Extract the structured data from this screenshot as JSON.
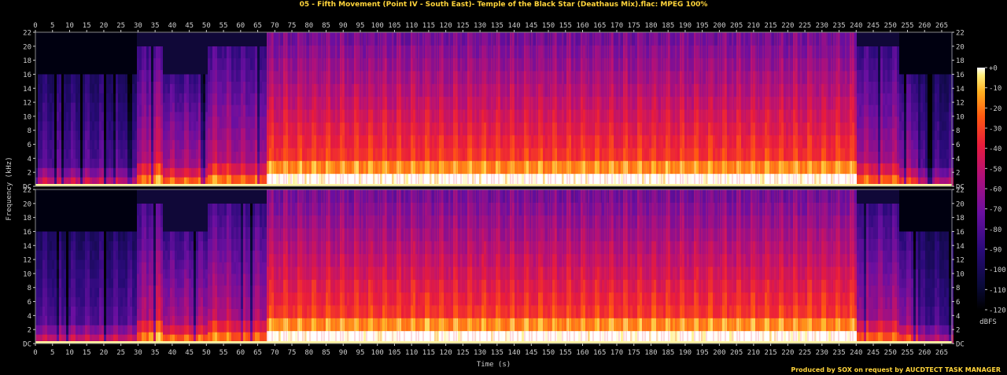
{
  "title": "05 - Fifth Movement (Point IV - South East)- Temple of the Black Star (Deathaus Mix).flac: MPEG 100%",
  "credit": "Produced by SOX on request by AUCDTECT TASK MANAGER",
  "chart_data": {
    "type": "heatmap",
    "title": "05 - Fifth Movement (Point IV - South East)- Temple of the Black Star (Deathaus Mix).flac: MPEG 100%",
    "xlabel": "Time (s)",
    "ylabel": "Frequency (kHz)",
    "colorbar_label": "dBFS",
    "xlim": [
      0,
      268
    ],
    "ylim_khz": [
      0,
      22
    ],
    "x_ticks": [
      0,
      5,
      10,
      15,
      20,
      25,
      30,
      35,
      40,
      45,
      50,
      55,
      60,
      65,
      70,
      75,
      80,
      85,
      90,
      95,
      100,
      105,
      110,
      115,
      120,
      125,
      130,
      135,
      140,
      145,
      150,
      155,
      160,
      165,
      170,
      175,
      180,
      185,
      190,
      195,
      200,
      205,
      210,
      215,
      220,
      225,
      230,
      235,
      240,
      245,
      250,
      255,
      260,
      265
    ],
    "y_ticks": [
      "DC",
      "2",
      "4",
      "6",
      "8",
      "10",
      "12",
      "14",
      "16",
      "18",
      "20",
      "22"
    ],
    "colorbar_ticks": [
      "+0",
      "-10",
      "-20",
      "-30",
      "-40",
      "-50",
      "-60",
      "-70",
      "-80",
      "-90",
      "-100",
      "-110",
      "-120"
    ],
    "colorbar_range_dbfs": [
      -120,
      0
    ],
    "channels": 2,
    "segments": [
      {
        "t0": 0,
        "t1": 29,
        "cutoff_khz": 16,
        "level": 0.35
      },
      {
        "t0": 29,
        "t1": 33,
        "cutoff_khz": 20,
        "level": 0.55
      },
      {
        "t0": 33,
        "t1": 37,
        "cutoff_khz": 20,
        "level": 0.65
      },
      {
        "t0": 37,
        "t1": 50,
        "cutoff_khz": 16,
        "level": 0.55
      },
      {
        "t0": 50,
        "t1": 56,
        "cutoff_khz": 20,
        "level": 0.6
      },
      {
        "t0": 56,
        "t1": 67,
        "cutoff_khz": 20,
        "level": 0.55
      },
      {
        "t0": 67,
        "t1": 240,
        "cutoff_khz": 22,
        "level": 0.78
      },
      {
        "t0": 240,
        "t1": 252,
        "cutoff_khz": 20,
        "level": 0.55
      },
      {
        "t0": 252,
        "t1": 258,
        "cutoff_khz": 16,
        "level": 0.5
      },
      {
        "t0": 258,
        "t1": 268,
        "cutoff_khz": 16,
        "level": 0.3
      }
    ]
  }
}
